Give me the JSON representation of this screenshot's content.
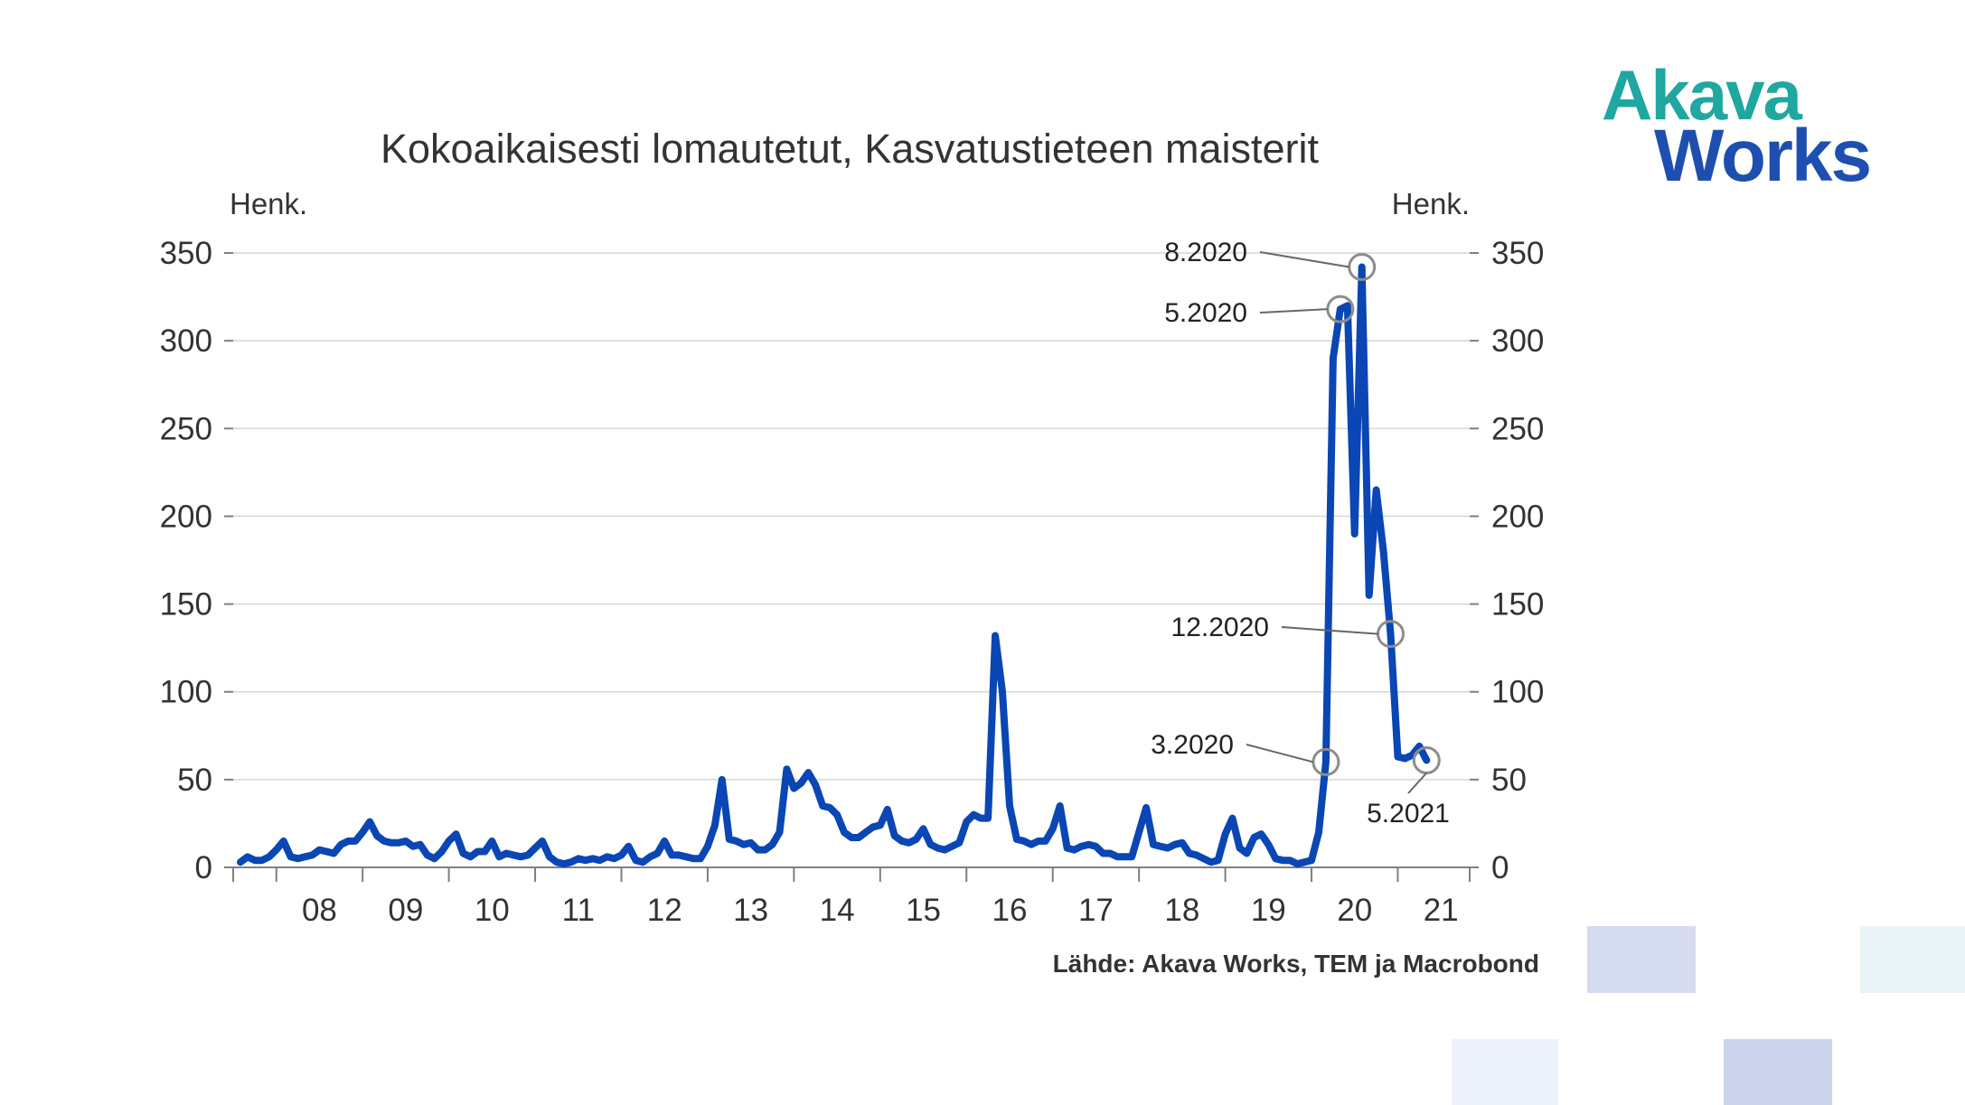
{
  "logo": {
    "line1": "Akava",
    "line2": "Works",
    "color1": "#1fa7a0",
    "color2": "#1e4fb0"
  },
  "chart_data": {
    "type": "line",
    "title": "Kokoaikaisesti lomautetut, Kasvatustieteen maisterit",
    "ylabel_left": "Henk.",
    "ylabel_right": "Henk.",
    "ylim": [
      0,
      350
    ],
    "yticks": [
      0,
      50,
      100,
      150,
      200,
      250,
      300,
      350
    ],
    "xlim": [
      "2007-07",
      "2021-11"
    ],
    "xtick_labels": [
      "08",
      "09",
      "10",
      "11",
      "12",
      "13",
      "14",
      "15",
      "16",
      "17",
      "18",
      "19",
      "20",
      "21"
    ],
    "grid": true,
    "line_color": "#0a46b4",
    "source": "Lähde: Akava Works, TEM ja Macrobond",
    "series": [
      {
        "name": "",
        "points": [
          [
            "2007-08",
            3
          ],
          [
            "2007-09",
            6
          ],
          [
            "2007-10",
            4
          ],
          [
            "2007-11",
            4
          ],
          [
            "2007-12",
            6
          ],
          [
            "2008-01",
            10
          ],
          [
            "2008-02",
            15
          ],
          [
            "2008-03",
            6
          ],
          [
            "2008-04",
            5
          ],
          [
            "2008-05",
            6
          ],
          [
            "2008-06",
            7
          ],
          [
            "2008-07",
            10
          ],
          [
            "2008-08",
            9
          ],
          [
            "2008-09",
            8
          ],
          [
            "2008-10",
            13
          ],
          [
            "2008-11",
            15
          ],
          [
            "2008-12",
            15
          ],
          [
            "2009-01",
            20
          ],
          [
            "2009-02",
            26
          ],
          [
            "2009-03",
            18
          ],
          [
            "2009-04",
            15
          ],
          [
            "2009-05",
            14
          ],
          [
            "2009-06",
            14
          ],
          [
            "2009-07",
            15
          ],
          [
            "2009-08",
            12
          ],
          [
            "2009-09",
            13
          ],
          [
            "2009-10",
            7
          ],
          [
            "2009-11",
            5
          ],
          [
            "2009-12",
            9
          ],
          [
            "2010-01",
            15
          ],
          [
            "2010-02",
            19
          ],
          [
            "2010-03",
            8
          ],
          [
            "2010-04",
            6
          ],
          [
            "2010-05",
            9
          ],
          [
            "2010-06",
            9
          ],
          [
            "2010-07",
            15
          ],
          [
            "2010-08",
            6
          ],
          [
            "2010-09",
            8
          ],
          [
            "2010-10",
            7
          ],
          [
            "2010-11",
            6
          ],
          [
            "2010-12",
            7
          ],
          [
            "2011-01",
            11
          ],
          [
            "2011-02",
            15
          ],
          [
            "2011-03",
            6
          ],
          [
            "2011-04",
            3
          ],
          [
            "2011-05",
            2
          ],
          [
            "2011-06",
            3
          ],
          [
            "2011-07",
            5
          ],
          [
            "2011-08",
            4
          ],
          [
            "2011-09",
            5
          ],
          [
            "2011-10",
            4
          ],
          [
            "2011-11",
            6
          ],
          [
            "2011-12",
            5
          ],
          [
            "2012-01",
            7
          ],
          [
            "2012-02",
            12
          ],
          [
            "2012-03",
            4
          ],
          [
            "2012-04",
            3
          ],
          [
            "2012-05",
            6
          ],
          [
            "2012-06",
            8
          ],
          [
            "2012-07",
            15
          ],
          [
            "2012-08",
            7
          ],
          [
            "2012-09",
            7
          ],
          [
            "2012-10",
            6
          ],
          [
            "2012-11",
            5
          ],
          [
            "2012-12",
            5
          ],
          [
            "2013-01",
            12
          ],
          [
            "2013-02",
            24
          ],
          [
            "2013-03",
            50
          ],
          [
            "2013-04",
            16
          ],
          [
            "2013-05",
            15
          ],
          [
            "2013-06",
            13
          ],
          [
            "2013-07",
            14
          ],
          [
            "2013-08",
            10
          ],
          [
            "2013-09",
            10
          ],
          [
            "2013-10",
            13
          ],
          [
            "2013-11",
            20
          ],
          [
            "2013-12",
            56
          ],
          [
            "2014-01",
            45
          ],
          [
            "2014-02",
            48
          ],
          [
            "2014-03",
            54
          ],
          [
            "2014-04",
            47
          ],
          [
            "2014-05",
            35
          ],
          [
            "2014-06",
            34
          ],
          [
            "2014-07",
            30
          ],
          [
            "2014-08",
            20
          ],
          [
            "2014-09",
            17
          ],
          [
            "2014-10",
            17
          ],
          [
            "2014-11",
            20
          ],
          [
            "2014-12",
            23
          ],
          [
            "2015-01",
            24
          ],
          [
            "2015-02",
            33
          ],
          [
            "2015-03",
            18
          ],
          [
            "2015-04",
            15
          ],
          [
            "2015-05",
            14
          ],
          [
            "2015-06",
            16
          ],
          [
            "2015-07",
            22
          ],
          [
            "2015-08",
            13
          ],
          [
            "2015-09",
            11
          ],
          [
            "2015-10",
            10
          ],
          [
            "2015-11",
            12
          ],
          [
            "2015-12",
            14
          ],
          [
            "2016-01",
            26
          ],
          [
            "2016-02",
            30
          ],
          [
            "2016-03",
            28
          ],
          [
            "2016-04",
            28
          ],
          [
            "2016-05",
            132
          ],
          [
            "2016-06",
            100
          ],
          [
            "2016-07",
            35
          ],
          [
            "2016-08",
            16
          ],
          [
            "2016-09",
            15
          ],
          [
            "2016-10",
            13
          ],
          [
            "2016-11",
            15
          ],
          [
            "2016-12",
            15
          ],
          [
            "2017-01",
            22
          ],
          [
            "2017-02",
            35
          ],
          [
            "2017-03",
            11
          ],
          [
            "2017-04",
            10
          ],
          [
            "2017-05",
            12
          ],
          [
            "2017-06",
            13
          ],
          [
            "2017-07",
            12
          ],
          [
            "2017-08",
            8
          ],
          [
            "2017-09",
            8
          ],
          [
            "2017-10",
            6
          ],
          [
            "2017-11",
            6
          ],
          [
            "2017-12",
            6
          ],
          [
            "2018-01",
            20
          ],
          [
            "2018-02",
            34
          ],
          [
            "2018-03",
            13
          ],
          [
            "2018-04",
            12
          ],
          [
            "2018-05",
            11
          ],
          [
            "2018-06",
            13
          ],
          [
            "2018-07",
            14
          ],
          [
            "2018-08",
            8
          ],
          [
            "2018-09",
            7
          ],
          [
            "2018-10",
            5
          ],
          [
            "2018-11",
            3
          ],
          [
            "2018-12",
            4
          ],
          [
            "2019-01",
            19
          ],
          [
            "2019-02",
            28
          ],
          [
            "2019-03",
            11
          ],
          [
            "2019-04",
            8
          ],
          [
            "2019-05",
            17
          ],
          [
            "2019-06",
            19
          ],
          [
            "2019-07",
            13
          ],
          [
            "2019-08",
            5
          ],
          [
            "2019-09",
            4
          ],
          [
            "2019-10",
            4
          ],
          [
            "2019-11",
            2
          ],
          [
            "2019-12",
            3
          ],
          [
            "2020-01",
            4
          ],
          [
            "2020-02",
            20
          ],
          [
            "2020-03",
            60
          ],
          [
            "2020-04",
            290
          ],
          [
            "2020-05",
            318
          ],
          [
            "2020-06",
            320
          ],
          [
            "2020-07",
            190
          ],
          [
            "2020-08",
            342
          ],
          [
            "2020-09",
            155
          ],
          [
            "2020-10",
            215
          ],
          [
            "2020-11",
            180
          ],
          [
            "2020-12",
            133
          ],
          [
            "2021-01",
            63
          ],
          [
            "2021-02",
            62
          ],
          [
            "2021-03",
            64
          ],
          [
            "2021-04",
            69
          ],
          [
            "2021-05",
            61
          ]
        ]
      }
    ],
    "annotations": [
      {
        "label": "8.2020",
        "x": "2020-08",
        "y": 342
      },
      {
        "label": "5.2020",
        "x": "2020-05",
        "y": 318
      },
      {
        "label": "12.2020",
        "x": "2020-12",
        "y": 133
      },
      {
        "label": "3.2020",
        "x": "2020-03",
        "y": 60
      },
      {
        "label": "5.2021",
        "x": "2021-05",
        "y": 61
      }
    ]
  }
}
